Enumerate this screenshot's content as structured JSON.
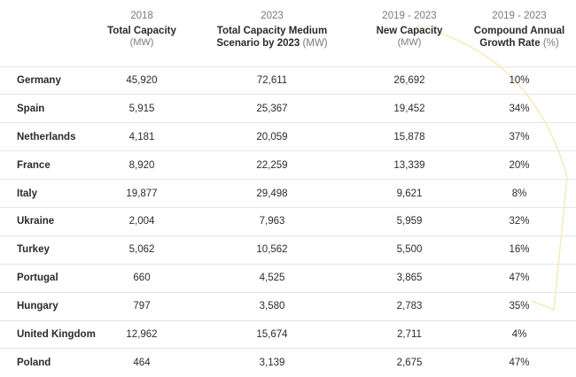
{
  "header": {
    "columns": [
      {
        "year": "",
        "title": "",
        "unit": ""
      },
      {
        "year": "2018",
        "title": "Total Capacity",
        "unit": "(MW)"
      },
      {
        "year": "2023",
        "title": "Total Capacity Medium Scenario by 2023",
        "title_line1": "Total Capacity Medium",
        "title_line2": "Scenario by 2023",
        "unit": "(MW)"
      },
      {
        "year": "2019 - 2023",
        "title": "New Capacity",
        "unit": "(MW)"
      },
      {
        "year": "2019 - 2023",
        "title": "Compound Annual Growth Rate",
        "title_line1": "Compound Annual",
        "title_line2": "Growth Rate",
        "unit": "(%)"
      }
    ]
  },
  "rows": [
    {
      "country": "Germany",
      "total_2018": "45,920",
      "total_2023": "72,611",
      "new_capacity": "26,692",
      "cagr": "10%"
    },
    {
      "country": "Spain",
      "total_2018": "5,915",
      "total_2023": "25,367",
      "new_capacity": "19,452",
      "cagr": "34%"
    },
    {
      "country": "Netherlands",
      "total_2018": "4,181",
      "total_2023": "20,059",
      "new_capacity": "15,878",
      "cagr": "37%"
    },
    {
      "country": "France",
      "total_2018": "8,920",
      "total_2023": "22,259",
      "new_capacity": "13,339",
      "cagr": "20%"
    },
    {
      "country": "Italy",
      "total_2018": "19,877",
      "total_2023": "29,498",
      "new_capacity": "9,621",
      "cagr": "8%"
    },
    {
      "country": "Ukraine",
      "total_2018": "2,004",
      "total_2023": "7,963",
      "new_capacity": "5,959",
      "cagr": "32%"
    },
    {
      "country": "Turkey",
      "total_2018": "5,062",
      "total_2023": "10,562",
      "new_capacity": "5,500",
      "cagr": "16%"
    },
    {
      "country": "Portugal",
      "total_2018": "660",
      "total_2023": "4,525",
      "new_capacity": "3,865",
      "cagr": "47%"
    },
    {
      "country": "Hungary",
      "total_2018": "797",
      "total_2023": "3,580",
      "new_capacity": "2,783",
      "cagr": "35%"
    },
    {
      "country": "United Kingdom",
      "total_2018": "12,962",
      "total_2023": "15,674",
      "new_capacity": "2,711",
      "cagr": "4%"
    },
    {
      "country": "Poland",
      "total_2018": "464",
      "total_2023": "3,139",
      "new_capacity": "2,675",
      "cagr": "47%"
    }
  ],
  "colors": {
    "text": "#2b2b2b",
    "muted": "#7a7a7a",
    "divider": "#e6e6e6",
    "watermark": "#f3dfa0"
  }
}
